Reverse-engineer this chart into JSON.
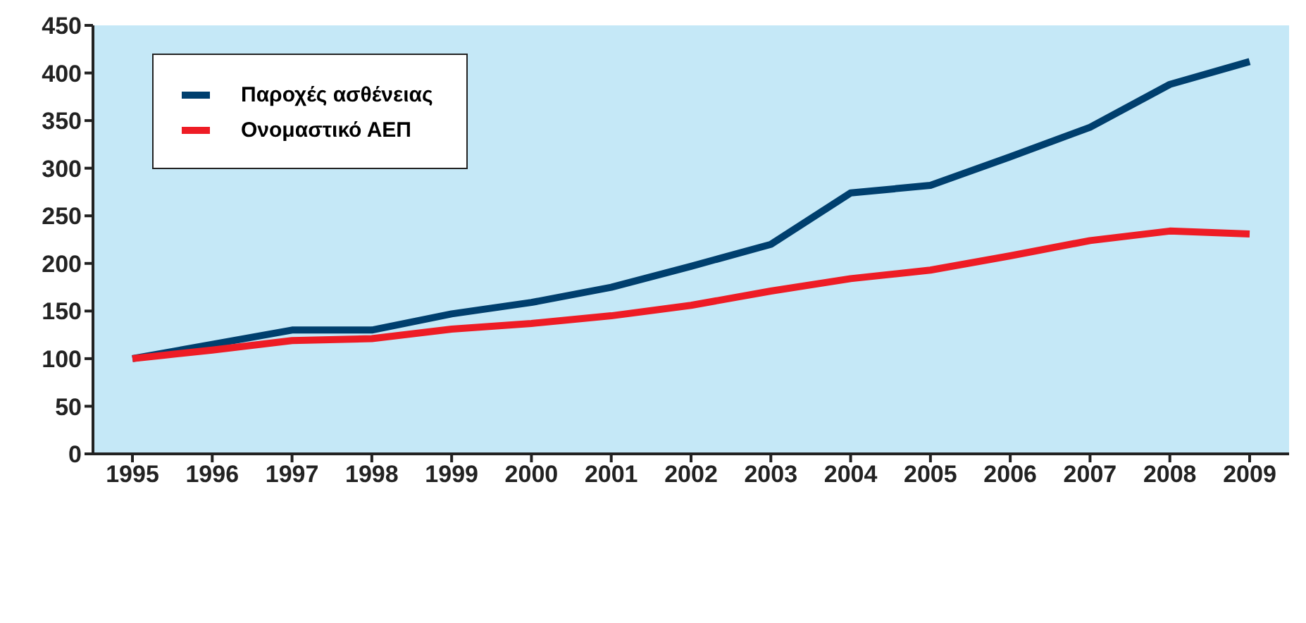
{
  "chart_data": {
    "type": "line",
    "categories": [
      "1995",
      "1996",
      "1997",
      "1998",
      "1999",
      "2000",
      "2001",
      "2002",
      "2003",
      "2004",
      "2005",
      "2006",
      "2007",
      "2008",
      "2009"
    ],
    "series": [
      {
        "name": "Παροχές ασθένειας",
        "color": "#003f6e",
        "values": [
          100,
          115,
          130,
          130,
          147,
          159,
          175,
          197,
          220,
          274,
          282,
          312,
          343,
          388,
          412
        ]
      },
      {
        "name": "Ονομαστικό ΑΕΠ",
        "color": "#ee1c25",
        "values": [
          100,
          109,
          119,
          121,
          131,
          137,
          145,
          156,
          171,
          184,
          193,
          208,
          224,
          234,
          231
        ]
      }
    ],
    "ylim": [
      0,
      450
    ],
    "yticks": [
      0,
      50,
      100,
      150,
      200,
      250,
      300,
      350,
      400,
      450
    ],
    "grid": false,
    "legend": "top left",
    "marker": "none",
    "line_style": "solid"
  }
}
